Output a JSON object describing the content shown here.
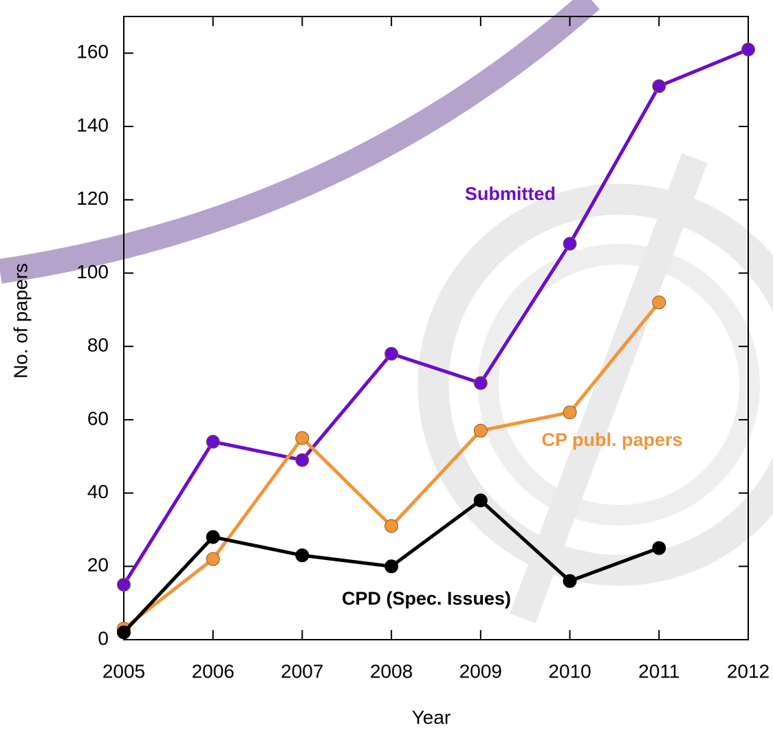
{
  "chart_data": {
    "type": "line",
    "x_label": "Year",
    "y_label": "No. of papers",
    "x": [
      2005,
      2006,
      2007,
      2008,
      2009,
      2010,
      2011,
      2012
    ],
    "xlim": [
      2005,
      2012
    ],
    "xticks": [
      2005,
      2006,
      2007,
      2008,
      2009,
      2010,
      2011,
      2012
    ],
    "ylim": [
      0,
      170
    ],
    "yticks": [
      0,
      20,
      40,
      60,
      80,
      100,
      120,
      140,
      160
    ],
    "series": [
      {
        "name": "Submitted",
        "color": "#6a0dcc",
        "values": [
          15,
          54,
          49,
          78,
          70,
          108,
          151,
          161
        ]
      },
      {
        "name": "CP publ. papers",
        "color": "#f0963a",
        "values": [
          3,
          22,
          55,
          31,
          57,
          62,
          92,
          null
        ]
      },
      {
        "name": "CPD (Spec. Issues)",
        "color": "#000000",
        "values": [
          2,
          28,
          23,
          20,
          38,
          16,
          25,
          null
        ]
      }
    ]
  }
}
